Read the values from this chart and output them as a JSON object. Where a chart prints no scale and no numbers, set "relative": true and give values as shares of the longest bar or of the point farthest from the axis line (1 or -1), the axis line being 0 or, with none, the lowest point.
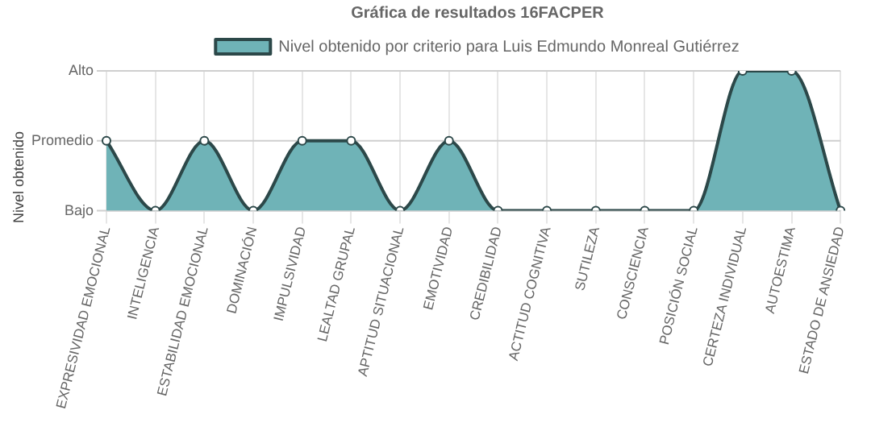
{
  "chart_data": {
    "type": "area",
    "title": "Gráfica de resultados 16FACPER",
    "ylabel": "Nivel obtenido",
    "relative": true,
    "categories": [
      "EXPRESIVIDAD EMOCIONAL",
      "INTELIGENCIA",
      "ESTABILIDAD EMOCIONAL",
      "DOMINACIÓN",
      "IMPULSIVIDAD",
      "LEALTAD GRUPAL",
      "APTITUD SITUACIONAL",
      "EMOTIVIDAD",
      "CREDIBILIDAD",
      "ACTITUD COGNITIVA",
      "SUTILEZA",
      "CONSCIENCIA",
      "POSICIÓN SOCIAL",
      "CERTEZA INDIVIDUAL",
      "AUTOESTIMA",
      "ESTADO DE ANSIEDAD"
    ],
    "ref_lines": [
      {
        "axis": "y",
        "value": 0,
        "label": "Bajo",
        "color": "#cfcfcf"
      },
      {
        "axis": "y",
        "value": 0.5,
        "label": "Promedio",
        "color": "#cfcfcf"
      },
      {
        "axis": "y",
        "value": 1,
        "label": "Alto",
        "color": "#cfcfcf"
      }
    ],
    "series": [
      {
        "name": "Nivel obtenido por criterio para Luis Edmundo Monreal Gutiérrez",
        "color": "#6fb3b7",
        "values": [
          0.5,
          0,
          0.5,
          0,
          0.5,
          0.5,
          0,
          0.5,
          0,
          0,
          0,
          0,
          0,
          1,
          1,
          0
        ]
      }
    ],
    "grid": true,
    "legend": "top",
    "marker": "circle"
  }
}
